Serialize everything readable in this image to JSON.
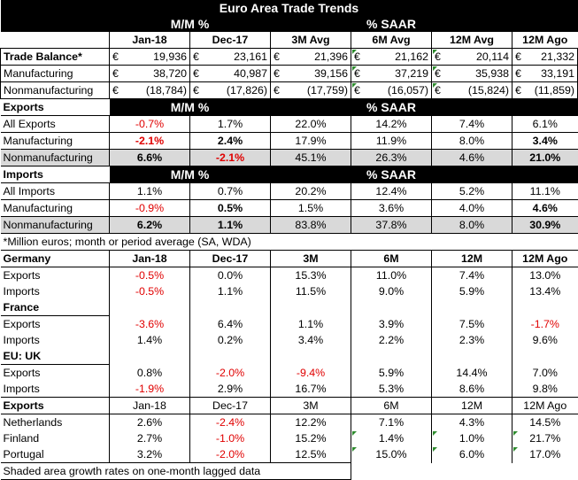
{
  "title": "Euro Area Trade Trends",
  "top_headers": {
    "mm": "M/M %",
    "saar": "% SAAR"
  },
  "col_headers": [
    "Jan-18",
    "Dec-17",
    "3M Avg",
    "6M Avg",
    "12M Avg",
    "12M Ago"
  ],
  "trade_balance": {
    "rows": [
      {
        "label": "Trade Balance*",
        "cur": "€",
        "values": [
          "19,936",
          "23,161",
          "21,396",
          "21,162",
          "20,114",
          "21,332"
        ]
      },
      {
        "label": "Manufacturing",
        "cur": "€",
        "values": [
          "38,720",
          "40,987",
          "39,156",
          "37,219",
          "35,938",
          "33,191"
        ]
      },
      {
        "label": "Nonmanufacturing",
        "cur": "€",
        "values": [
          "(18,784)",
          "(17,826)",
          "(17,759)",
          "(16,057)",
          "(15,824)",
          "(11,859)"
        ]
      }
    ]
  },
  "exports": {
    "label": "Exports",
    "rows": [
      {
        "label": "All Exports",
        "values": [
          "-0.7%",
          "1.7%",
          "22.0%",
          "14.2%",
          "7.4%",
          "6.1%"
        ]
      },
      {
        "label": "Manufacturing",
        "values": [
          "-2.1%",
          "2.4%",
          "17.9%",
          "11.9%",
          "8.0%",
          "3.4%"
        ]
      },
      {
        "label": "Nonmanufacturing",
        "values": [
          "6.6%",
          "-2.1%",
          "45.1%",
          "26.3%",
          "4.6%",
          "21.0%"
        ]
      }
    ]
  },
  "imports": {
    "label": "Imports",
    "rows": [
      {
        "label": "All Imports",
        "values": [
          "1.1%",
          "0.7%",
          "20.2%",
          "12.4%",
          "5.2%",
          "11.1%"
        ]
      },
      {
        "label": "Manufacturing",
        "values": [
          "-0.9%",
          "0.5%",
          "1.5%",
          "3.6%",
          "4.0%",
          "4.6%"
        ]
      },
      {
        "label": "Nonmanufacturing",
        "values": [
          "6.2%",
          "1.1%",
          "83.8%",
          "37.8%",
          "8.0%",
          "30.9%"
        ]
      }
    ]
  },
  "footnote": "*Million euros; month or period average (SA, WDA)",
  "country_headers": [
    "Jan-18",
    "Dec-17",
    "3M",
    "6M",
    "12M",
    "12M Ago"
  ],
  "countries": [
    {
      "name": "Germany",
      "rows": [
        {
          "label": "Exports",
          "values": [
            "-0.5%",
            "0.0%",
            "15.3%",
            "11.0%",
            "7.4%",
            "13.0%"
          ]
        },
        {
          "label": "Imports",
          "values": [
            "-0.5%",
            "1.1%",
            "11.5%",
            "9.0%",
            "5.9%",
            "13.4%"
          ]
        }
      ]
    },
    {
      "name": "France",
      "rows": [
        {
          "label": "Exports",
          "values": [
            "-3.6%",
            "6.4%",
            "1.1%",
            "3.9%",
            "7.5%",
            "-1.7%"
          ]
        },
        {
          "label": "Imports",
          "values": [
            "1.4%",
            "0.2%",
            "3.4%",
            "2.2%",
            "2.3%",
            "9.6%"
          ]
        }
      ]
    },
    {
      "name": "EU: UK",
      "rows": [
        {
          "label": "Exports",
          "values": [
            "0.8%",
            "-2.0%",
            "-9.4%",
            "5.9%",
            "14.4%",
            "7.0%"
          ]
        },
        {
          "label": "Imports",
          "values": [
            "-1.9%",
            "2.9%",
            "16.7%",
            "5.3%",
            "8.6%",
            "9.8%"
          ]
        }
      ]
    }
  ],
  "export_dest": {
    "label": "Exports",
    "headers": [
      "Jan-18",
      "Dec-17",
      "3M",
      "6M",
      "12M",
      "12M Ago"
    ],
    "rows": [
      {
        "label": "Netherlands",
        "values": [
          "2.6%",
          "-2.4%",
          "12.2%",
          "7.1%",
          "4.3%",
          "14.5%"
        ]
      },
      {
        "label": "Finland",
        "values": [
          "2.7%",
          "-1.0%",
          "15.2%",
          "1.4%",
          "1.0%",
          "21.7%"
        ]
      },
      {
        "label": "Portugal",
        "values": [
          "3.2%",
          "-2.0%",
          "12.5%",
          "15.0%",
          "6.0%",
          "17.0%"
        ]
      }
    ]
  },
  "bottom_note": "Shaded area growth rates on one-month lagged data",
  "colors": {
    "negative": "#e00000",
    "shade": "#d9d9d9",
    "header_bg": "#000000",
    "comment_marker": "#2e8b2e"
  }
}
